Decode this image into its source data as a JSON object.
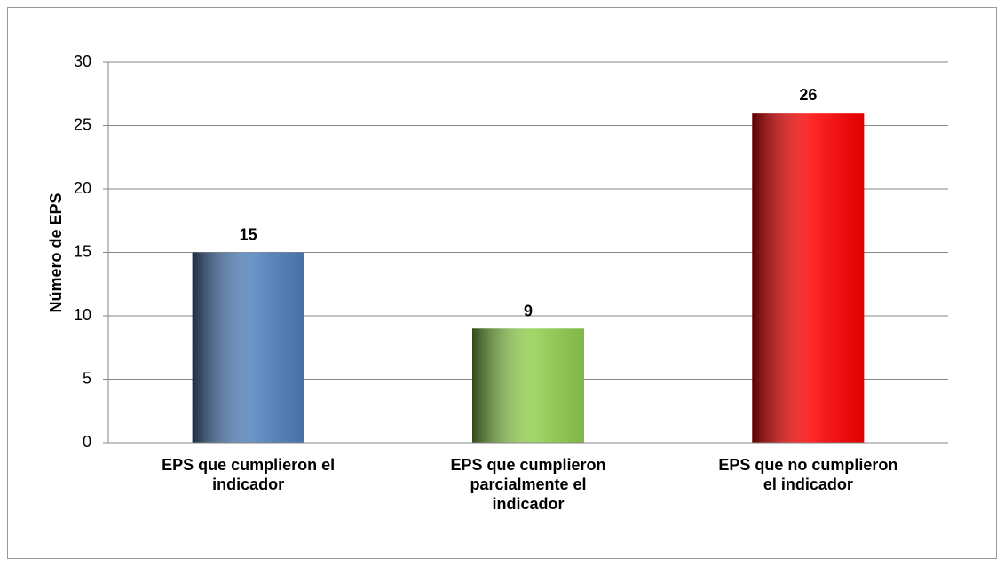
{
  "chart_data": {
    "type": "bar",
    "y_axis_label": "Número de EPS",
    "categories": [
      "EPS que cumplieron el indicador",
      "EPS que cumplieron parcialmente el indicador",
      "EPS que no cumplieron el indicador"
    ],
    "values": [
      15,
      9,
      26
    ],
    "colors": [
      "#4f81bd",
      "#92d050",
      "#ff0000"
    ],
    "ylim": [
      0,
      30
    ],
    "yticks": [
      0,
      5,
      10,
      15,
      20,
      25,
      30
    ],
    "grid": true
  }
}
